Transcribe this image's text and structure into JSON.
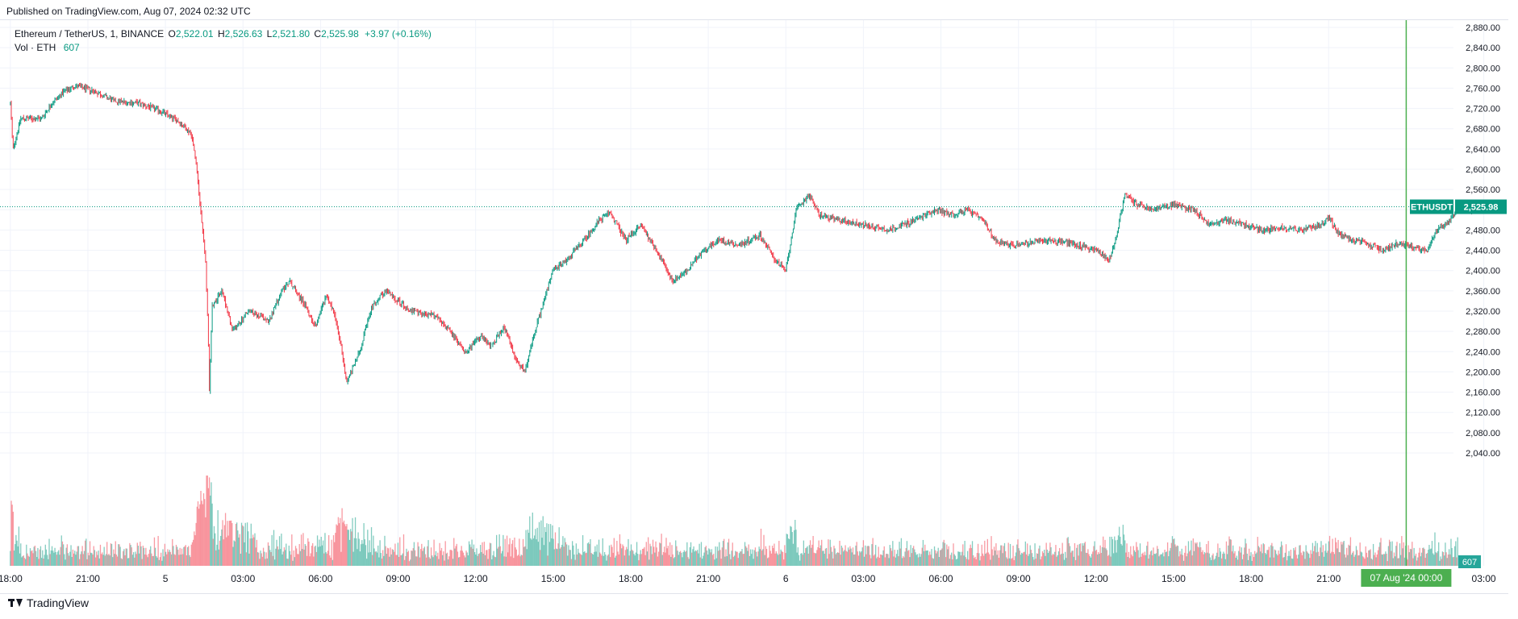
{
  "header": {
    "published": "Published on TradingView.com, Aug 07, 2024 02:32 UTC"
  },
  "legend": {
    "symbol": "Ethereum / TetherUS, 1, BINANCE",
    "open_label": "O",
    "open": "2,522.01",
    "high_label": "H",
    "high": "2,526.63",
    "low_label": "L",
    "low": "2,521.80",
    "close_label": "C",
    "close": "2,525.98",
    "change": "+3.97 (+0.16%)",
    "volume_label": "Vol · ETH",
    "volume": "607"
  },
  "colors": {
    "up": "#089981",
    "down": "#f23645",
    "crosshair": "#4caf50",
    "grid": "#f0f3fa"
  },
  "price_tag": {
    "symbol": "ETHUSDT",
    "value": "2,525.98"
  },
  "volume_tag": "607",
  "crosshair_label": "07 Aug '24   00:00",
  "footer": {
    "brand": "TradingView"
  },
  "chart_data": {
    "type": "candlestick",
    "interval": "1 minute",
    "y_ticks": [
      "2,880.00",
      "2,840.00",
      "2,800.00",
      "2,760.00",
      "2,720.00",
      "2,680.00",
      "2,640.00",
      "2,600.00",
      "2,560.00",
      "2,520.00",
      "2,480.00",
      "2,440.00",
      "2,400.00",
      "2,360.00",
      "2,320.00",
      "2,280.00",
      "2,240.00",
      "2,200.00",
      "2,160.00",
      "2,120.00",
      "2,080.00",
      "2,040.00"
    ],
    "y_tick_values": [
      2880,
      2840,
      2800,
      2760,
      2720,
      2680,
      2640,
      2600,
      2560,
      2520,
      2480,
      2440,
      2400,
      2360,
      2320,
      2280,
      2240,
      2200,
      2160,
      2120,
      2080,
      2040
    ],
    "x_ticks": [
      "18:00",
      "21:00",
      "5",
      "03:00",
      "06:00",
      "09:00",
      "12:00",
      "15:00",
      "18:00",
      "21:00",
      "6",
      "03:00",
      "06:00",
      "09:00",
      "12:00",
      "15:00",
      "18:00",
      "21:00",
      "03:00"
    ],
    "x_tick_hours": [
      0,
      3,
      6,
      9,
      12,
      15,
      18,
      21,
      24,
      27,
      30,
      33,
      36,
      39,
      42,
      45,
      48,
      51,
      57
    ],
    "time_range_hours": [
      -0.4,
      57.95
    ],
    "price_path": [
      [
        0,
        2730
      ],
      [
        0.1,
        2640
      ],
      [
        0.4,
        2700
      ],
      [
        1.2,
        2700
      ],
      [
        1.6,
        2730
      ],
      [
        2.0,
        2750
      ],
      [
        2.5,
        2765
      ],
      [
        3.2,
        2755
      ],
      [
        4.0,
        2735
      ],
      [
        5.0,
        2730
      ],
      [
        5.8,
        2715
      ],
      [
        6.5,
        2695
      ],
      [
        7.0,
        2670
      ],
      [
        7.2,
        2610
      ],
      [
        7.4,
        2500
      ],
      [
        7.55,
        2420
      ],
      [
        7.65,
        2280
      ],
      [
        7.7,
        2160
      ],
      [
        7.8,
        2330
      ],
      [
        8.2,
        2360
      ],
      [
        8.6,
        2280
      ],
      [
        9.2,
        2320
      ],
      [
        10.0,
        2300
      ],
      [
        10.5,
        2360
      ],
      [
        10.8,
        2380
      ],
      [
        11.3,
        2340
      ],
      [
        11.8,
        2290
      ],
      [
        12.2,
        2350
      ],
      [
        12.5,
        2320
      ],
      [
        12.8,
        2250
      ],
      [
        13.0,
        2180
      ],
      [
        13.5,
        2240
      ],
      [
        14.0,
        2330
      ],
      [
        14.5,
        2360
      ],
      [
        15.5,
        2320
      ],
      [
        16.5,
        2310
      ],
      [
        17.0,
        2280
      ],
      [
        17.6,
        2240
      ],
      [
        18.2,
        2270
      ],
      [
        18.6,
        2250
      ],
      [
        19.1,
        2290
      ],
      [
        19.5,
        2230
      ],
      [
        19.9,
        2200
      ],
      [
        20.4,
        2300
      ],
      [
        21.0,
        2400
      ],
      [
        21.5,
        2420
      ],
      [
        22.2,
        2460
      ],
      [
        22.8,
        2500
      ],
      [
        23.2,
        2515
      ],
      [
        23.8,
        2460
      ],
      [
        24.4,
        2490
      ],
      [
        25.0,
        2440
      ],
      [
        25.6,
        2380
      ],
      [
        26.2,
        2400
      ],
      [
        26.8,
        2440
      ],
      [
        27.4,
        2460
      ],
      [
        28.2,
        2450
      ],
      [
        29.0,
        2470
      ],
      [
        29.6,
        2420
      ],
      [
        30.0,
        2400
      ],
      [
        30.4,
        2520
      ],
      [
        30.9,
        2550
      ],
      [
        31.3,
        2510
      ],
      [
        32.0,
        2500
      ],
      [
        33.0,
        2490
      ],
      [
        34.0,
        2480
      ],
      [
        35.0,
        2500
      ],
      [
        35.8,
        2520
      ],
      [
        36.5,
        2510
      ],
      [
        37.0,
        2520
      ],
      [
        37.6,
        2500
      ],
      [
        38.1,
        2460
      ],
      [
        38.7,
        2450
      ],
      [
        39.5,
        2455
      ],
      [
        40.2,
        2460
      ],
      [
        41.0,
        2455
      ],
      [
        42.0,
        2440
      ],
      [
        42.5,
        2420
      ],
      [
        42.8,
        2470
      ],
      [
        43.1,
        2550
      ],
      [
        43.6,
        2530
      ],
      [
        44.2,
        2520
      ],
      [
        45.0,
        2530
      ],
      [
        45.8,
        2520
      ],
      [
        46.4,
        2490
      ],
      [
        47.0,
        2500
      ],
      [
        47.8,
        2490
      ],
      [
        48.4,
        2480
      ],
      [
        49.2,
        2485
      ],
      [
        50.0,
        2480
      ],
      [
        50.7,
        2490
      ],
      [
        51.0,
        2505
      ],
      [
        51.4,
        2470
      ],
      [
        52.0,
        2460
      ],
      [
        52.6,
        2450
      ],
      [
        53.1,
        2440
      ],
      [
        53.7,
        2455
      ],
      [
        54.3,
        2445
      ],
      [
        54.8,
        2440
      ],
      [
        55.2,
        2480
      ],
      [
        55.7,
        2500
      ],
      [
        56.0,
        2524
      ]
    ],
    "volume_max_hint": 1
  }
}
